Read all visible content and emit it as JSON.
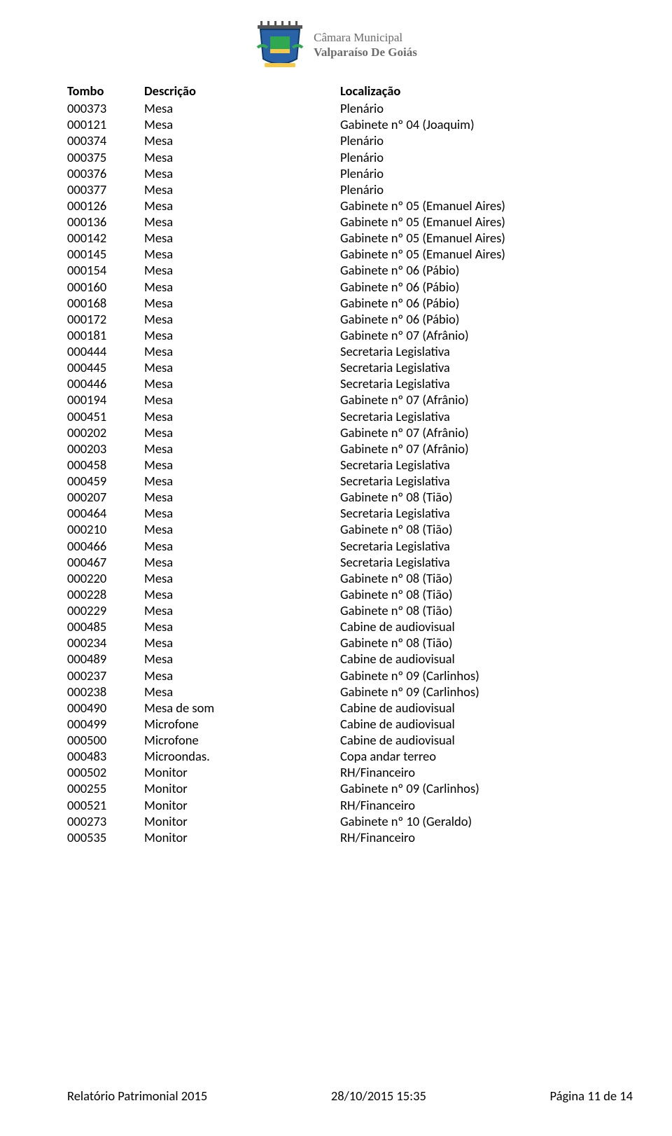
{
  "logo": {
    "line1": "Câmara Municipal",
    "line2": "Valparaíso De Goiás"
  },
  "columns": {
    "tombo": "Tombo",
    "descricao": "Descrição",
    "localizacao": "Localização"
  },
  "rows": [
    {
      "t": "000373",
      "d": "Mesa",
      "l": "Plenário"
    },
    {
      "t": "000121",
      "d": "Mesa",
      "l": "Gabinete nº 04 (Joaquim)"
    },
    {
      "t": "000374",
      "d": "Mesa",
      "l": "Plenário"
    },
    {
      "t": "000375",
      "d": "Mesa",
      "l": "Plenário"
    },
    {
      "t": "000376",
      "d": "Mesa",
      "l": "Plenário"
    },
    {
      "t": "000377",
      "d": "Mesa",
      "l": "Plenário"
    },
    {
      "t": "000126",
      "d": "Mesa",
      "l": "Gabinete nº 05 (Emanuel Aires)"
    },
    {
      "t": "000136",
      "d": "Mesa",
      "l": "Gabinete nº 05 (Emanuel Aires)"
    },
    {
      "t": "000142",
      "d": "Mesa",
      "l": "Gabinete nº 05 (Emanuel Aires)"
    },
    {
      "t": "000145",
      "d": "Mesa",
      "l": "Gabinete nº 05 (Emanuel Aires)"
    },
    {
      "t": "000154",
      "d": "Mesa",
      "l": "Gabinete nº 06 (Pábio)"
    },
    {
      "t": "000160",
      "d": "Mesa",
      "l": "Gabinete nº 06 (Pábio)"
    },
    {
      "t": "000168",
      "d": "Mesa",
      "l": "Gabinete nº 06 (Pábio)"
    },
    {
      "t": "000172",
      "d": "Mesa",
      "l": "Gabinete nº 06 (Pábio)"
    },
    {
      "t": "000181",
      "d": "Mesa",
      "l": "Gabinete nº 07 (Afrânio)"
    },
    {
      "t": "000444",
      "d": "Mesa",
      "l": "Secretaria Legislativa"
    },
    {
      "t": "000445",
      "d": "Mesa",
      "l": "Secretaria Legislativa"
    },
    {
      "t": "000446",
      "d": "Mesa",
      "l": "Secretaria Legislativa"
    },
    {
      "t": "000194",
      "d": "Mesa",
      "l": "Gabinete nº 07 (Afrânio)"
    },
    {
      "t": "000451",
      "d": "Mesa",
      "l": "Secretaria Legislativa"
    },
    {
      "t": "000202",
      "d": "Mesa",
      "l": "Gabinete nº 07 (Afrânio)"
    },
    {
      "t": "000203",
      "d": "Mesa",
      "l": "Gabinete nº 07 (Afrânio)"
    },
    {
      "t": "000458",
      "d": "Mesa",
      "l": "Secretaria Legislativa"
    },
    {
      "t": "000459",
      "d": "Mesa",
      "l": "Secretaria Legislativa"
    },
    {
      "t": "000207",
      "d": "Mesa",
      "l": "Gabinete nº 08 (Tião)"
    },
    {
      "t": "000464",
      "d": "Mesa",
      "l": "Secretaria Legislativa"
    },
    {
      "t": "000210",
      "d": "Mesa",
      "l": "Gabinete nº 08 (Tião)"
    },
    {
      "t": "000466",
      "d": "Mesa",
      "l": "Secretaria Legislativa"
    },
    {
      "t": "000467",
      "d": "Mesa",
      "l": "Secretaria Legislativa"
    },
    {
      "t": "000220",
      "d": "Mesa",
      "l": "Gabinete nº 08 (Tião)"
    },
    {
      "t": "000228",
      "d": "Mesa",
      "l": "Gabinete nº 08 (Tião)"
    },
    {
      "t": "000229",
      "d": "Mesa",
      "l": "Gabinete nº 08 (Tião)"
    },
    {
      "t": "000485",
      "d": "Mesa",
      "l": "Cabine de audiovisual"
    },
    {
      "t": "000234",
      "d": "Mesa",
      "l": "Gabinete nº 08 (Tião)"
    },
    {
      "t": "000489",
      "d": "Mesa",
      "l": "Cabine de audiovisual"
    },
    {
      "t": "000237",
      "d": "Mesa",
      "l": "Gabinete nº 09 (Carlinhos)"
    },
    {
      "t": "000238",
      "d": "Mesa",
      "l": "Gabinete nº 09 (Carlinhos)"
    },
    {
      "t": "000490",
      "d": "Mesa de som",
      "l": "Cabine de audiovisual"
    },
    {
      "t": "000499",
      "d": "Microfone",
      "l": "Cabine de audiovisual"
    },
    {
      "t": "000500",
      "d": "Microfone",
      "l": "Cabine de audiovisual"
    },
    {
      "t": "000483",
      "d": "Microondas.",
      "l": "Copa andar terreo"
    },
    {
      "t": "000502",
      "d": "Monitor",
      "l": "RH/Financeiro"
    },
    {
      "t": "000255",
      "d": "Monitor",
      "l": "Gabinete nº 09 (Carlinhos)"
    },
    {
      "t": "000521",
      "d": "Monitor",
      "l": "RH/Financeiro"
    },
    {
      "t": "000273",
      "d": "Monitor",
      "l": "Gabinete nº 10 (Geraldo)"
    },
    {
      "t": "000535",
      "d": "Monitor",
      "l": "RH/Financeiro"
    }
  ],
  "footer": {
    "left": "Relatório Patrimonial 2015",
    "center": "28/10/2015 15:35",
    "right": "Página 11 de 14"
  }
}
